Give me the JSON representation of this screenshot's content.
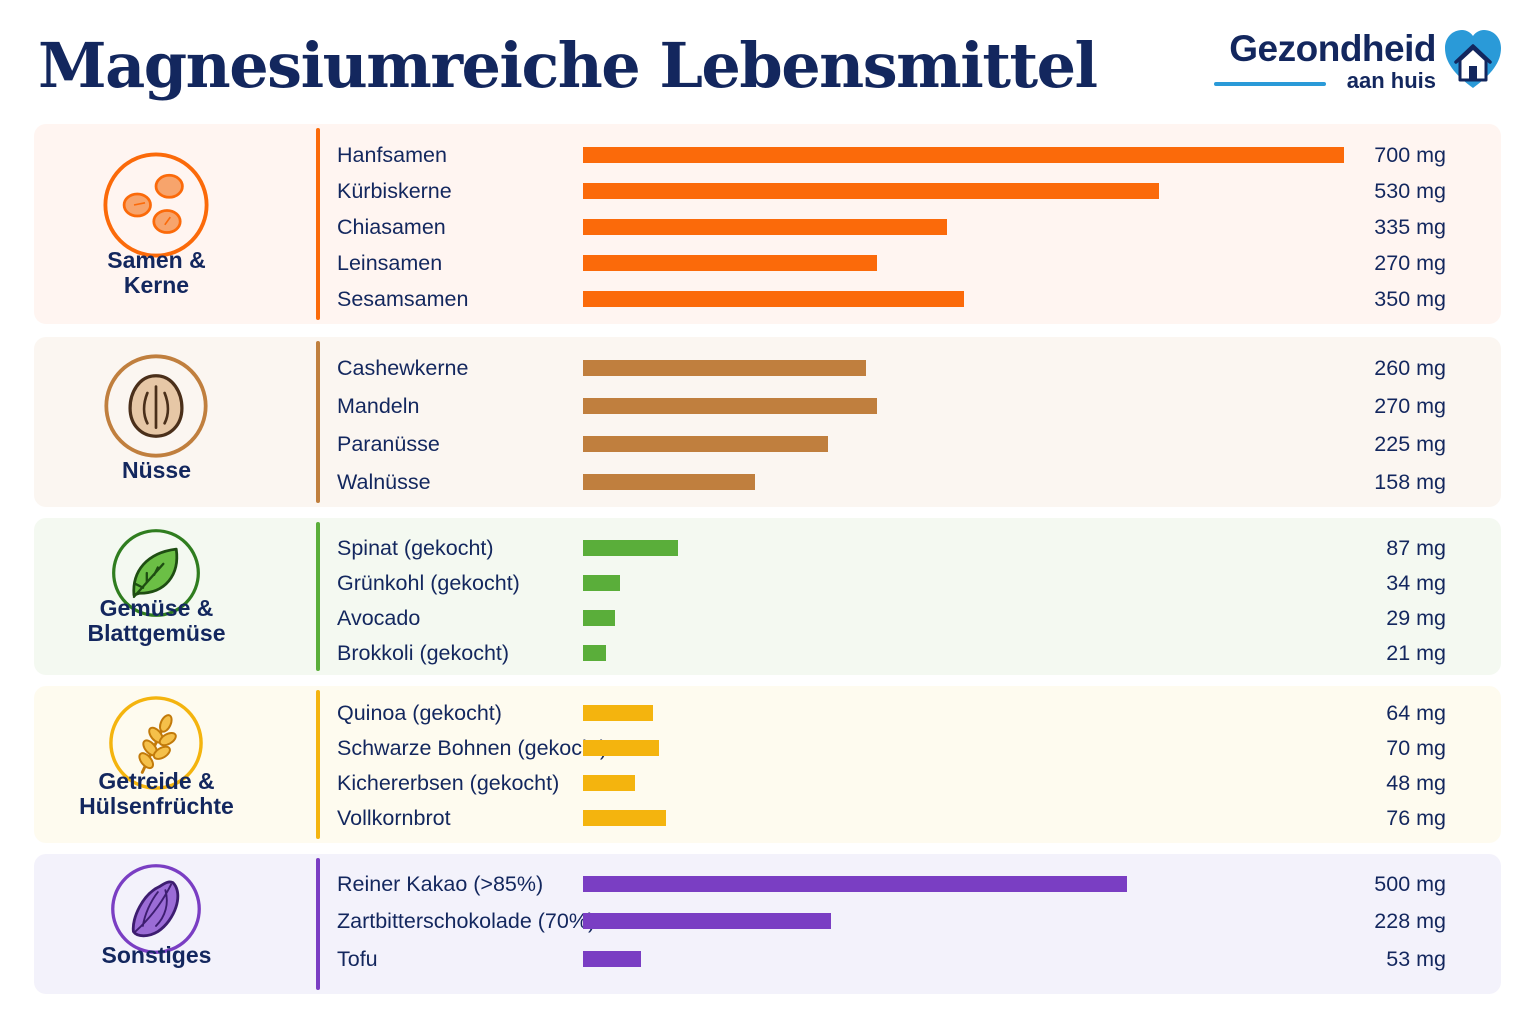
{
  "header": {
    "title": "Magnesiumreiche Lebensmittel",
    "logo_brand": "Gezondheid",
    "logo_sub": "aan huis"
  },
  "colors": {
    "seeds": "#fb6a0a",
    "nuts": "#c07f3e",
    "veg": "#5aae3a",
    "grain": "#f4b40e",
    "other": "#7a3ec3",
    "title": "#13275e"
  },
  "chart_data": {
    "type": "bar",
    "orientation": "horizontal",
    "title": "Magnesiumreiche Lebensmittel",
    "unit": "mg",
    "xlim": [
      0,
      700
    ],
    "groups": [
      {
        "key": "seeds",
        "name": "Samen & Kerne",
        "icon": "seeds-icon",
        "color": "#fb6a0a",
        "items": [
          {
            "name": "Hanfsamen",
            "value": 700,
            "label": "700 mg"
          },
          {
            "name": "Kürbiskerne",
            "value": 530,
            "label": "530 mg"
          },
          {
            "name": "Chiasamen",
            "value": 335,
            "label": "335 mg"
          },
          {
            "name": "Leinsamen",
            "value": 270,
            "label": "270 mg"
          },
          {
            "name": "Sesamsamen",
            "value": 350,
            "label": "350 mg"
          }
        ]
      },
      {
        "key": "nuts",
        "name": "Nüsse",
        "icon": "nut-icon",
        "color": "#c07f3e",
        "items": [
          {
            "name": "Cashewkerne",
            "value": 260,
            "label": "260 mg"
          },
          {
            "name": "Mandeln",
            "value": 270,
            "label": "270 mg"
          },
          {
            "name": "Paranüsse",
            "value": 225,
            "label": "225 mg"
          },
          {
            "name": "Walnüsse",
            "value": 158,
            "label": "158 mg"
          }
        ]
      },
      {
        "key": "veg",
        "name": "Gemüse & Blattgemüse",
        "icon": "leaf-icon",
        "color": "#5aae3a",
        "items": [
          {
            "name": "Spinat (gekocht)",
            "value": 87,
            "label": "87 mg"
          },
          {
            "name": "Grünkohl (gekocht)",
            "value": 34,
            "label": "34 mg"
          },
          {
            "name": "Avocado",
            "value": 29,
            "label": "29 mg"
          },
          {
            "name": "Brokkoli (gekocht)",
            "value": 21,
            "label": "21 mg"
          }
        ]
      },
      {
        "key": "grain",
        "name": "Getreide & Hülsenfrüchte",
        "icon": "wheat-icon",
        "color": "#f4b40e",
        "items": [
          {
            "name": "Quinoa (gekocht)",
            "value": 64,
            "label": "64 mg"
          },
          {
            "name": "Schwarze Bohnen (gekocht)",
            "value": 70,
            "label": "70 mg"
          },
          {
            "name": "Kichererbsen (gekocht)",
            "value": 48,
            "label": "48 mg"
          },
          {
            "name": "Vollkornbrot",
            "value": 76,
            "label": "76 mg"
          }
        ]
      },
      {
        "key": "other",
        "name": "Sonstiges",
        "icon": "cacao-icon",
        "color": "#7a3ec3",
        "items": [
          {
            "name": "Reiner Kakao (>85%)",
            "value": 500,
            "label": "500 mg"
          },
          {
            "name": "Zartbitterschokolade (70%)",
            "value": 228,
            "label": "228 mg"
          },
          {
            "name": "Tofu",
            "value": 53,
            "label": "53 mg"
          }
        ]
      }
    ]
  }
}
